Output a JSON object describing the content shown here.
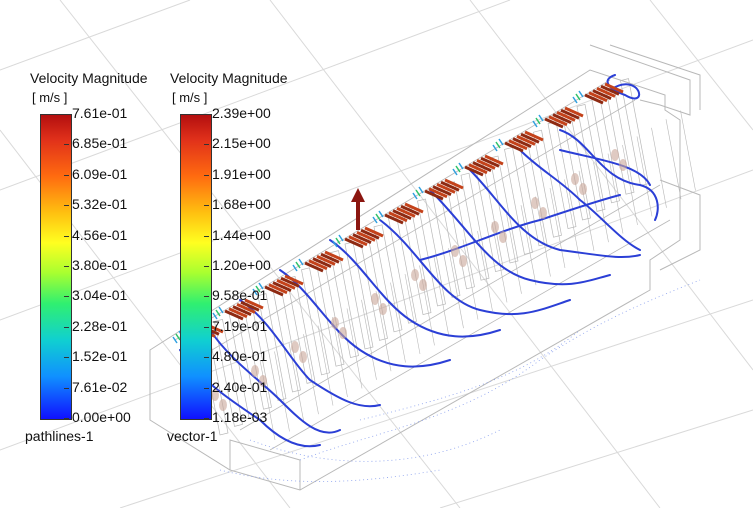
{
  "chart_data": [
    {
      "type": "colorbar",
      "name": "pathlines-1",
      "title": "Velocity Magnitude",
      "unit": "[ m/s ]",
      "ticks": [
        "7.61e-01",
        "6.85e-01",
        "6.09e-01",
        "5.32e-01",
        "4.56e-01",
        "3.80e-01",
        "3.04e-01",
        "2.28e-01",
        "1.52e-01",
        "7.61e-02",
        "0.00e+00"
      ],
      "range": [
        0.0,
        0.761
      ],
      "colormap": "rainbow (blue low, red high)"
    },
    {
      "type": "colorbar",
      "name": "vector-1",
      "title": "Velocity Magnitude",
      "unit": "[ m/s ]",
      "ticks": [
        "2.39e+00",
        "2.15e+00",
        "1.91e+00",
        "1.68e+00",
        "1.44e+00",
        "1.20e+00",
        "9.58e-01",
        "7.19e-01",
        "4.80e-01",
        "2.40e-01",
        "1.18e-03"
      ],
      "range": [
        0.00118,
        2.39
      ],
      "colormap": "rainbow (blue low, red high)"
    }
  ],
  "colors": {
    "pathline": "#2b3fd6",
    "vector_high": "#a31a0c",
    "wireframe": "#b8b8b8",
    "grid": "#d9d9d9"
  }
}
